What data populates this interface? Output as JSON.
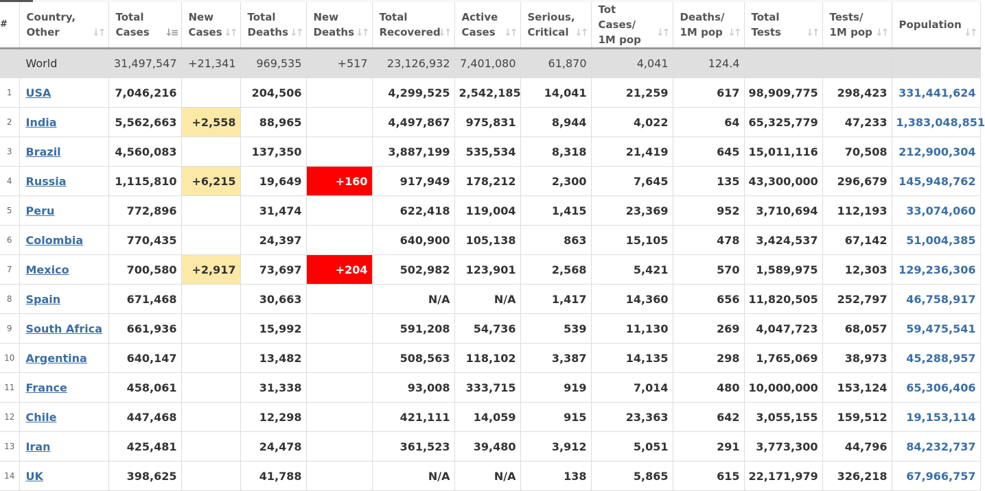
{
  "columns": [
    {
      "label": "#",
      "sortable": false
    },
    {
      "label": "Country,\nOther",
      "sortable": true
    },
    {
      "label": "Total\nCases",
      "sortable": true,
      "active": true
    },
    {
      "label": "New\nCases",
      "sortable": true
    },
    {
      "label": "Total\nDeaths",
      "sortable": true
    },
    {
      "label": "New\nDeaths",
      "sortable": true
    },
    {
      "label": "Total\nRecovered",
      "sortable": true
    },
    {
      "label": "Active\nCases",
      "sortable": true
    },
    {
      "label": "Serious,\nCritical",
      "sortable": true
    },
    {
      "label": "Tot Cases/\n1M pop",
      "sortable": true
    },
    {
      "label": "Deaths/\n1M pop",
      "sortable": true
    },
    {
      "label": "Total\nTests",
      "sortable": true
    },
    {
      "label": "Tests/\n1M pop",
      "sortable": true
    },
    {
      "label": "Population",
      "sortable": true
    }
  ],
  "world": {
    "name": "World",
    "total_cases": "31,497,547",
    "new_cases": "+21,341",
    "total_deaths": "969,535",
    "new_deaths": "+517",
    "total_recovered": "23,126,932",
    "active_cases": "7,401,080",
    "serious_critical": "61,870",
    "cases_per_1m": "4,041",
    "deaths_per_1m": "124.4",
    "total_tests": "",
    "tests_per_1m": "",
    "population": ""
  },
  "rows": [
    {
      "num": "1",
      "country": "USA",
      "total_cases": "7,046,216",
      "new_cases": "",
      "total_deaths": "204,506",
      "new_deaths": "",
      "total_recovered": "4,299,525",
      "active_cases": "2,542,185",
      "serious_critical": "14,041",
      "cases_per_1m": "21,259",
      "deaths_per_1m": "617",
      "total_tests": "98,909,775",
      "tests_per_1m": "298,423",
      "population": "331,441,624"
    },
    {
      "num": "2",
      "country": "India",
      "total_cases": "5,562,663",
      "new_cases": "+2,558",
      "total_deaths": "88,965",
      "new_deaths": "",
      "total_recovered": "4,497,867",
      "active_cases": "975,831",
      "serious_critical": "8,944",
      "cases_per_1m": "4,022",
      "deaths_per_1m": "64",
      "total_tests": "65,325,779",
      "tests_per_1m": "47,233",
      "population": "1,383,048,851"
    },
    {
      "num": "3",
      "country": "Brazil",
      "total_cases": "4,560,083",
      "new_cases": "",
      "total_deaths": "137,350",
      "new_deaths": "",
      "total_recovered": "3,887,199",
      "active_cases": "535,534",
      "serious_critical": "8,318",
      "cases_per_1m": "21,419",
      "deaths_per_1m": "645",
      "total_tests": "15,011,116",
      "tests_per_1m": "70,508",
      "population": "212,900,304"
    },
    {
      "num": "4",
      "country": "Russia",
      "total_cases": "1,115,810",
      "new_cases": "+6,215",
      "total_deaths": "19,649",
      "new_deaths": "+160",
      "total_recovered": "917,949",
      "active_cases": "178,212",
      "serious_critical": "2,300",
      "cases_per_1m": "7,645",
      "deaths_per_1m": "135",
      "total_tests": "43,300,000",
      "tests_per_1m": "296,679",
      "population": "145,948,762"
    },
    {
      "num": "5",
      "country": "Peru",
      "total_cases": "772,896",
      "new_cases": "",
      "total_deaths": "31,474",
      "new_deaths": "",
      "total_recovered": "622,418",
      "active_cases": "119,004",
      "serious_critical": "1,415",
      "cases_per_1m": "23,369",
      "deaths_per_1m": "952",
      "total_tests": "3,710,694",
      "tests_per_1m": "112,193",
      "population": "33,074,060"
    },
    {
      "num": "6",
      "country": "Colombia",
      "total_cases": "770,435",
      "new_cases": "",
      "total_deaths": "24,397",
      "new_deaths": "",
      "total_recovered": "640,900",
      "active_cases": "105,138",
      "serious_critical": "863",
      "cases_per_1m": "15,105",
      "deaths_per_1m": "478",
      "total_tests": "3,424,537",
      "tests_per_1m": "67,142",
      "population": "51,004,385"
    },
    {
      "num": "7",
      "country": "Mexico",
      "total_cases": "700,580",
      "new_cases": "+2,917",
      "total_deaths": "73,697",
      "new_deaths": "+204",
      "total_recovered": "502,982",
      "active_cases": "123,901",
      "serious_critical": "2,568",
      "cases_per_1m": "5,421",
      "deaths_per_1m": "570",
      "total_tests": "1,589,975",
      "tests_per_1m": "12,303",
      "population": "129,236,306"
    },
    {
      "num": "8",
      "country": "Spain",
      "total_cases": "671,468",
      "new_cases": "",
      "total_deaths": "30,663",
      "new_deaths": "",
      "total_recovered": "N/A",
      "active_cases": "N/A",
      "serious_critical": "1,417",
      "cases_per_1m": "14,360",
      "deaths_per_1m": "656",
      "total_tests": "11,820,505",
      "tests_per_1m": "252,797",
      "population": "46,758,917"
    },
    {
      "num": "9",
      "country": "South Africa",
      "total_cases": "661,936",
      "new_cases": "",
      "total_deaths": "15,992",
      "new_deaths": "",
      "total_recovered": "591,208",
      "active_cases": "54,736",
      "serious_critical": "539",
      "cases_per_1m": "11,130",
      "deaths_per_1m": "269",
      "total_tests": "4,047,723",
      "tests_per_1m": "68,057",
      "population": "59,475,541"
    },
    {
      "num": "10",
      "country": "Argentina",
      "total_cases": "640,147",
      "new_cases": "",
      "total_deaths": "13,482",
      "new_deaths": "",
      "total_recovered": "508,563",
      "active_cases": "118,102",
      "serious_critical": "3,387",
      "cases_per_1m": "14,135",
      "deaths_per_1m": "298",
      "total_tests": "1,765,069",
      "tests_per_1m": "38,973",
      "population": "45,288,957"
    },
    {
      "num": "11",
      "country": "France",
      "total_cases": "458,061",
      "new_cases": "",
      "total_deaths": "31,338",
      "new_deaths": "",
      "total_recovered": "93,008",
      "active_cases": "333,715",
      "serious_critical": "919",
      "cases_per_1m": "7,014",
      "deaths_per_1m": "480",
      "total_tests": "10,000,000",
      "tests_per_1m": "153,124",
      "population": "65,306,406"
    },
    {
      "num": "12",
      "country": "Chile",
      "total_cases": "447,468",
      "new_cases": "",
      "total_deaths": "12,298",
      "new_deaths": "",
      "total_recovered": "421,111",
      "active_cases": "14,059",
      "serious_critical": "915",
      "cases_per_1m": "23,363",
      "deaths_per_1m": "642",
      "total_tests": "3,055,155",
      "tests_per_1m": "159,512",
      "population": "19,153,114"
    },
    {
      "num": "13",
      "country": "Iran",
      "total_cases": "425,481",
      "new_cases": "",
      "total_deaths": "24,478",
      "new_deaths": "",
      "total_recovered": "361,523",
      "active_cases": "39,480",
      "serious_critical": "3,912",
      "cases_per_1m": "5,051",
      "deaths_per_1m": "291",
      "total_tests": "3,773,300",
      "tests_per_1m": "44,796",
      "population": "84,232,737"
    },
    {
      "num": "14",
      "country": "UK",
      "total_cases": "398,625",
      "new_cases": "",
      "total_deaths": "41,788",
      "new_deaths": "",
      "total_recovered": "N/A",
      "active_cases": "N/A",
      "serious_critical": "138",
      "cases_per_1m": "5,865",
      "deaths_per_1m": "615",
      "total_tests": "22,171,979",
      "tests_per_1m": "326,218",
      "population": "67,966,757"
    }
  ],
  "colors": {
    "link": "#3a6fa5",
    "new_cases_highlight": "#fce9a8",
    "new_deaths_highlight": "#ff0000",
    "world_row_bg": "#dfdfdf",
    "header_border": "#999999"
  },
  "icons": {
    "sort": "sort-arrows-icon"
  }
}
